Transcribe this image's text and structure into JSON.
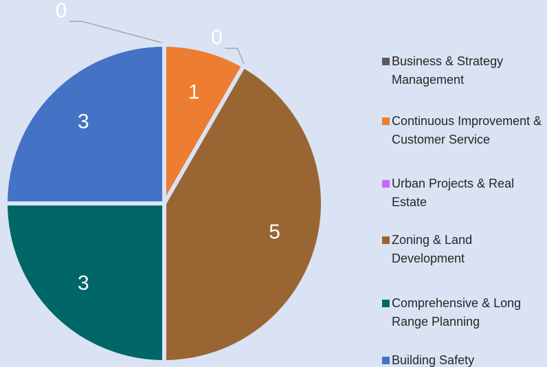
{
  "chart_data": {
    "type": "pie",
    "categories": [
      "Business & Strategy Management",
      " Continuous Improvement & Customer Service",
      "Urban Projects & Real Estate",
      "Zoning & Land Development",
      "Comprehensive & Long Range Planning",
      "Building Safety"
    ],
    "values": [
      0,
      1,
      0,
      5,
      3,
      3
    ],
    "colors": [
      "#595959",
      "#ed7d31",
      "#cc66ff",
      "#996633",
      "#006666",
      "#4472c4"
    ],
    "legend": "right"
  }
}
